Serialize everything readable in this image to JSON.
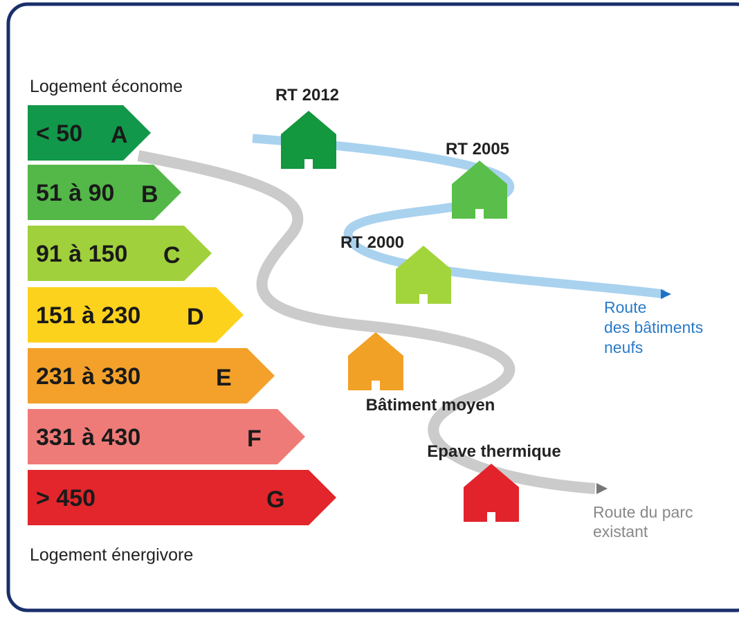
{
  "top_label": "Logement économe",
  "bottom_label": "Logement énergivore",
  "bands": [
    {
      "range": "< 50",
      "letter": "A"
    },
    {
      "range": "51 à 90",
      "letter": "B"
    },
    {
      "range": "91 à 150",
      "letter": "C"
    },
    {
      "range": "151 à 230",
      "letter": "D"
    },
    {
      "range": "231 à 330",
      "letter": "E"
    },
    {
      "range": "331 à 430",
      "letter": "F"
    },
    {
      "range": "> 450",
      "letter": "G"
    }
  ],
  "houses": [
    {
      "label": "RT 2012"
    },
    {
      "label": "RT 2005"
    },
    {
      "label": "RT 2000"
    },
    {
      "label": "Bâtiment moyen"
    },
    {
      "label": "Epave thermique"
    }
  ],
  "routes": [
    {
      "lines": [
        "Route",
        "des bâtiments",
        "neufs"
      ]
    },
    {
      "lines": [
        "Route du parc",
        "existant"
      ]
    }
  ]
}
